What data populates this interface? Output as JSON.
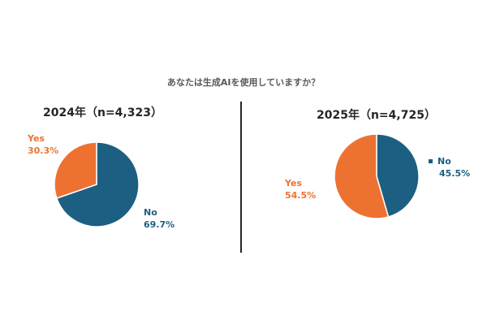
{
  "title": "あなたは生成AIを使用していますか？",
  "colors": {
    "yes": "#ED7232",
    "no": "#1D5F82"
  },
  "chart_data": [
    {
      "type": "pie",
      "title": "2024年（n=4,323）",
      "slices": [
        {
          "label": "No",
          "value": 69.7,
          "value_label": "69.7%"
        },
        {
          "label": "Yes",
          "value": 30.3,
          "value_label": "30.3%"
        }
      ]
    },
    {
      "type": "pie",
      "title": "2025年（n=4,725）",
      "slices": [
        {
          "label": "No",
          "value": 45.5,
          "value_label": "45.5%"
        },
        {
          "label": "Yes",
          "value": 54.5,
          "value_label": "54.5%"
        }
      ]
    }
  ]
}
